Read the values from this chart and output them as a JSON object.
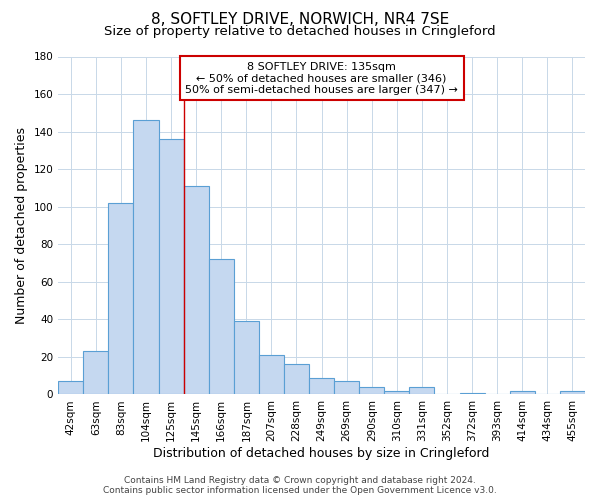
{
  "title": "8, SOFTLEY DRIVE, NORWICH, NR4 7SE",
  "subtitle": "Size of property relative to detached houses in Cringleford",
  "xlabel": "Distribution of detached houses by size in Cringleford",
  "ylabel": "Number of detached properties",
  "bar_labels": [
    "42sqm",
    "63sqm",
    "83sqm",
    "104sqm",
    "125sqm",
    "145sqm",
    "166sqm",
    "187sqm",
    "207sqm",
    "228sqm",
    "249sqm",
    "269sqm",
    "290sqm",
    "310sqm",
    "331sqm",
    "352sqm",
    "372sqm",
    "393sqm",
    "414sqm",
    "434sqm",
    "455sqm"
  ],
  "bar_heights": [
    7,
    23,
    102,
    146,
    136,
    111,
    72,
    39,
    21,
    16,
    9,
    7,
    4,
    2,
    4,
    0,
    1,
    0,
    2,
    0,
    2
  ],
  "bar_color": "#c5d8f0",
  "bar_edge_color": "#5a9fd4",
  "ylim": [
    0,
    180
  ],
  "yticks": [
    0,
    20,
    40,
    60,
    80,
    100,
    120,
    140,
    160,
    180
  ],
  "annotation_title": "8 SOFTLEY DRIVE: 135sqm",
  "annotation_line1": "← 50% of detached houses are smaller (346)",
  "annotation_line2": "50% of semi-detached houses are larger (347) →",
  "annotation_box_color": "#ffffff",
  "annotation_border_color": "#cc0000",
  "red_line_index": 4.5,
  "footer_line1": "Contains HM Land Registry data © Crown copyright and database right 2024.",
  "footer_line2": "Contains public sector information licensed under the Open Government Licence v3.0.",
  "background_color": "#ffffff",
  "grid_color": "#c8d8e8",
  "title_fontsize": 11,
  "subtitle_fontsize": 9.5,
  "axis_label_fontsize": 9,
  "tick_fontsize": 7.5,
  "annotation_fontsize": 8,
  "footer_fontsize": 6.5
}
